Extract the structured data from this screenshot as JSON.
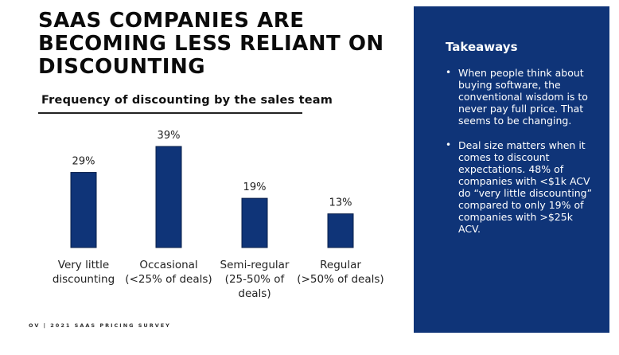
{
  "slide": {
    "title": "SAAS COMPANIES ARE BECOMING LESS RELIANT ON DISCOUNTING",
    "footer": "OV | 2021 SAAS PRICING SURVEY"
  },
  "takeaways": {
    "heading": "Takeaways",
    "items": [
      "When people think about buying software, the conventional wisdom is to never pay full price. That seems to be changing.",
      "Deal size matters when it comes to discount expectations. 48% of companies with <$1k ACV do “very little discounting” compared to only 19% of companies with >$25k ACV."
    ],
    "panel_color": "#0f3478"
  },
  "chart_data": {
    "type": "bar",
    "title": "Frequency of discounting by the sales team",
    "xlabel": "",
    "ylabel": "",
    "categories": [
      "Very little discounting",
      "Occasional (<25% of deals)",
      "Semi-regular (25-50% of deals)",
      "Regular (>50% of deals)"
    ],
    "category_lines": [
      [
        "Very little",
        "discounting"
      ],
      [
        "Occasional",
        "(<25% of deals)"
      ],
      [
        "Semi-regular",
        "(25-50% of",
        "deals)"
      ],
      [
        "Regular",
        "(>50% of deals)"
      ]
    ],
    "values": [
      29,
      39,
      19,
      13
    ],
    "value_labels": [
      "29%",
      "39%",
      "19%",
      "13%"
    ],
    "ylim": [
      0,
      39
    ],
    "grid": false,
    "legend": "none",
    "bar_color": "#0f3478",
    "bar_edge_color": "#0a1f4a"
  }
}
